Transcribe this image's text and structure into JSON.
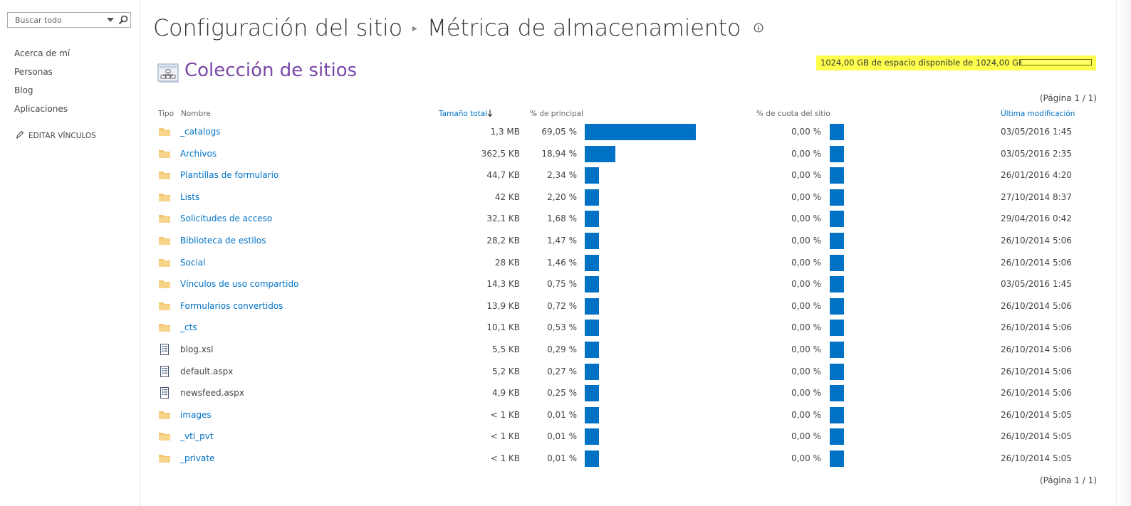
{
  "search": {
    "placeholder": "Buscar todo"
  },
  "leftnav": {
    "items": [
      {
        "label": "Acerca de mí"
      },
      {
        "label": "Personas"
      },
      {
        "label": "Blog"
      },
      {
        "label": "Aplicaciones"
      }
    ],
    "edit_links": "EDITAR VÍNCULOS"
  },
  "header": {
    "breadcrumb_root": "Configuración del sitio",
    "breadcrumb_current": "Métrica de almacenamiento"
  },
  "site_collection": {
    "title": "Colección de sitios"
  },
  "quota": {
    "text": "1024,00 GB de espacio disponible de 1024,00 GB",
    "used_fraction": 0.0
  },
  "pager": {
    "top": "(Página 1 / 1)",
    "bottom": "(Página 1 / 1)"
  },
  "columns": {
    "type": "Tipo",
    "name": "Nombre",
    "total_size": "Tamaño total",
    "pct_parent": "% de principal",
    "pct_quota": "% de cuota del sitio",
    "modified": "Última modificación"
  },
  "colors": {
    "accent": "#0072c6",
    "title_purple": "#7a48a8",
    "quota_bg": "#ffff4d",
    "folder": "#f2c56e"
  },
  "rows": [
    {
      "icon": "folder-icon",
      "name": "_catalogs",
      "link": true,
      "size": "1,3 MB",
      "pct": "69,05 %",
      "pct_value": 69.05,
      "quota_pct": "0,00 %",
      "modified": "03/05/2016 1:45"
    },
    {
      "icon": "folder-icon",
      "name": "Archivos",
      "link": true,
      "size": "362,5 KB",
      "pct": "18,94 %",
      "pct_value": 18.94,
      "quota_pct": "0,00 %",
      "modified": "03/05/2016 2:35"
    },
    {
      "icon": "folder-icon",
      "name": "Plantillas de formulario",
      "link": true,
      "size": "44,7 KB",
      "pct": "2,34 %",
      "pct_value": 2.34,
      "quota_pct": "0,00 %",
      "modified": "26/01/2016 4:20"
    },
    {
      "icon": "folder-icon",
      "name": "Lists",
      "link": true,
      "size": "42 KB",
      "pct": "2,20 %",
      "pct_value": 2.2,
      "quota_pct": "0,00 %",
      "modified": "27/10/2014 8:37"
    },
    {
      "icon": "folder-icon",
      "name": "Solicitudes de acceso",
      "link": true,
      "size": "32,1 KB",
      "pct": "1,68 %",
      "pct_value": 1.68,
      "quota_pct": "0,00 %",
      "modified": "29/04/2016 0:42"
    },
    {
      "icon": "folder-icon",
      "name": "Biblioteca de estilos",
      "link": true,
      "size": "28,2 KB",
      "pct": "1,47 %",
      "pct_value": 1.47,
      "quota_pct": "0,00 %",
      "modified": "26/10/2014 5:06"
    },
    {
      "icon": "folder-icon",
      "name": "Social",
      "link": true,
      "size": "28 KB",
      "pct": "1,46 %",
      "pct_value": 1.46,
      "quota_pct": "0,00 %",
      "modified": "26/10/2014 5:06"
    },
    {
      "icon": "folder-icon",
      "name": "Vínculos de uso compartido",
      "link": true,
      "size": "14,3 KB",
      "pct": "0,75 %",
      "pct_value": 0.75,
      "quota_pct": "0,00 %",
      "modified": "03/05/2016 1:45"
    },
    {
      "icon": "folder-icon",
      "name": "Formularios convertidos",
      "link": true,
      "size": "13,9 KB",
      "pct": "0,72 %",
      "pct_value": 0.72,
      "quota_pct": "0,00 %",
      "modified": "26/10/2014 5:06"
    },
    {
      "icon": "folder-icon",
      "name": "_cts",
      "link": true,
      "size": "10,1 KB",
      "pct": "0,53 %",
      "pct_value": 0.53,
      "quota_pct": "0,00 %",
      "modified": "26/10/2014 5:06"
    },
    {
      "icon": "file-icon",
      "name": "blog.xsl",
      "link": false,
      "size": "5,5 KB",
      "pct": "0,29 %",
      "pct_value": 0.29,
      "quota_pct": "0,00 %",
      "modified": "26/10/2014 5:06"
    },
    {
      "icon": "file-icon",
      "name": "default.aspx",
      "link": false,
      "size": "5,2 KB",
      "pct": "0,27 %",
      "pct_value": 0.27,
      "quota_pct": "0,00 %",
      "modified": "26/10/2014 5:06"
    },
    {
      "icon": "file-icon",
      "name": "newsfeed.aspx",
      "link": false,
      "size": "4,9 KB",
      "pct": "0,25 %",
      "pct_value": 0.25,
      "quota_pct": "0,00 %",
      "modified": "26/10/2014 5:06"
    },
    {
      "icon": "folder-icon",
      "name": "images",
      "link": true,
      "size": "< 1 KB",
      "pct": "0,01 %",
      "pct_value": 0.01,
      "quota_pct": "0,00 %",
      "modified": "26/10/2014 5:05"
    },
    {
      "icon": "folder-icon",
      "name": "_vti_pvt",
      "link": true,
      "size": "< 1 KB",
      "pct": "0,01 %",
      "pct_value": 0.01,
      "quota_pct": "0,00 %",
      "modified": "26/10/2014 5:05"
    },
    {
      "icon": "folder-icon",
      "name": "_private",
      "link": true,
      "size": "< 1 KB",
      "pct": "0,01 %",
      "pct_value": 0.01,
      "quota_pct": "0,00 %",
      "modified": "26/10/2014 5:05"
    }
  ]
}
